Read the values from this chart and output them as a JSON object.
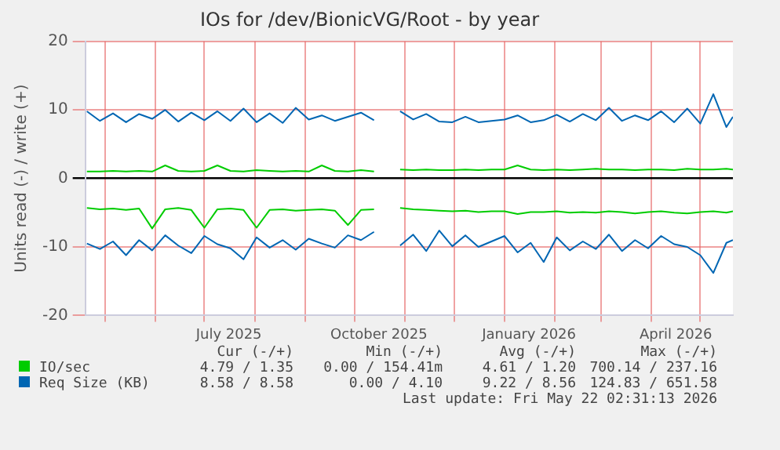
{
  "chart_data": {
    "type": "line",
    "title": "IOs for /dev/BionicVG/Root - by year",
    "ylabel": "Units read (-) / write (+)",
    "x": [
      "2025-04-20",
      "2025-04-28",
      "2025-05-06",
      "2025-05-14",
      "2025-05-22",
      "2025-05-30",
      "2025-06-07",
      "2025-06-15",
      "2025-06-23",
      "2025-07-01",
      "2025-07-09",
      "2025-07-17",
      "2025-07-25",
      "2025-08-02",
      "2025-08-10",
      "2025-08-18",
      "2025-08-26",
      "2025-09-03",
      "2025-09-11",
      "2025-09-19",
      "2025-09-27",
      "2025-10-05",
      "2025-10-13",
      "2025-10-21",
      "2025-10-29",
      "2025-11-06",
      "2025-11-14",
      "2025-11-22",
      "2025-11-30",
      "2025-12-08",
      "2025-12-16",
      "2025-12-24",
      "2026-01-01",
      "2026-01-09",
      "2026-01-17",
      "2026-01-25",
      "2026-02-02",
      "2026-02-10",
      "2026-02-18",
      "2026-02-26",
      "2026-03-06",
      "2026-03-14",
      "2026-03-22",
      "2026-03-30",
      "2026-04-07",
      "2026-04-15",
      "2026-04-23",
      "2026-05-01",
      "2026-05-09",
      "2026-05-17",
      "2026-05-21"
    ],
    "series": [
      {
        "name": "IO/sec",
        "color": "#00cc00",
        "values": [
          -4.3,
          -4.5,
          -4.4,
          -4.6,
          -4.4,
          -7.3,
          -4.5,
          -4.3,
          -4.6,
          -7.2,
          -4.5,
          -4.4,
          -4.6,
          -7.2,
          -4.6,
          -4.5,
          -4.7,
          -4.6,
          -4.5,
          -4.7,
          -6.8,
          -4.6,
          -4.5,
          null,
          -4.3,
          -4.5,
          -4.6,
          -4.7,
          -4.8,
          -4.7,
          -4.9,
          -4.8,
          -4.8,
          -5.2,
          -4.9,
          -4.9,
          -4.8,
          -5.0,
          -4.9,
          -5.0,
          -4.8,
          -4.9,
          -5.1,
          -4.9,
          -4.8,
          -5.0,
          -5.1,
          -4.9,
          -4.8,
          -5.0,
          -4.8
        ]
      },
      {
        "color": "#00cc00",
        "values": [
          1.0,
          1.0,
          1.1,
          1.0,
          1.1,
          1.0,
          1.9,
          1.1,
          1.0,
          1.1,
          1.9,
          1.1,
          1.0,
          1.2,
          1.1,
          1.0,
          1.1,
          1.0,
          1.9,
          1.1,
          1.0,
          1.2,
          1.0,
          null,
          1.3,
          1.2,
          1.3,
          1.2,
          1.2,
          1.3,
          1.2,
          1.3,
          1.3,
          1.9,
          1.3,
          1.2,
          1.3,
          1.2,
          1.3,
          1.4,
          1.3,
          1.3,
          1.2,
          1.3,
          1.3,
          1.2,
          1.4,
          1.3,
          1.3,
          1.4,
          1.3
        ]
      },
      {
        "name": "Req Size (KB)",
        "color": "#0066b3",
        "values": [
          -9.5,
          -10.3,
          -9.2,
          -11.2,
          -9.0,
          -10.5,
          -8.3,
          -9.8,
          -10.9,
          -8.4,
          -9.6,
          -10.2,
          -11.8,
          -8.6,
          -10.1,
          -9.0,
          -10.4,
          -8.8,
          -9.5,
          -10.1,
          -8.3,
          -9.0,
          -7.8,
          null,
          -9.8,
          -8.2,
          -10.6,
          -7.6,
          -9.9,
          -8.3,
          -10.0,
          -9.2,
          -8.4,
          -10.8,
          -9.4,
          -12.2,
          -8.6,
          -10.5,
          -9.2,
          -10.3,
          -8.2,
          -10.6,
          -9.0,
          -10.2,
          -8.4,
          -9.6,
          -10.0,
          -11.2,
          -13.8,
          -9.4,
          -9.0
        ]
      },
      {
        "color": "#0066b3",
        "values": [
          9.8,
          8.4,
          9.5,
          8.2,
          9.4,
          8.7,
          10.0,
          8.3,
          9.6,
          8.5,
          9.8,
          8.4,
          10.2,
          8.2,
          9.5,
          8.1,
          10.3,
          8.6,
          9.2,
          8.4,
          9.0,
          9.6,
          8.5,
          null,
          9.8,
          8.6,
          9.4,
          8.3,
          8.2,
          9.0,
          8.2,
          8.4,
          8.6,
          9.2,
          8.2,
          8.5,
          9.3,
          8.3,
          9.4,
          8.5,
          10.3,
          8.4,
          9.2,
          8.5,
          9.8,
          8.2,
          10.2,
          8.0,
          12.3,
          7.5,
          9.0
        ]
      }
    ],
    "xlim": [
      "2025-04-19",
      "2026-05-21"
    ],
    "xticks": [
      {
        "value": "2025-05-01",
        "label": null
      },
      {
        "value": "2025-06-01",
        "label": null
      },
      {
        "value": "2025-07-01",
        "label": null
      },
      {
        "value": "2025-07-16",
        "label": "July 2025"
      },
      {
        "value": "2025-08-01",
        "label": null
      },
      {
        "value": "2025-09-01",
        "label": null
      },
      {
        "value": "2025-10-01",
        "label": null
      },
      {
        "value": "2025-10-16",
        "label": "October 2025"
      },
      {
        "value": "2025-11-01",
        "label": null
      },
      {
        "value": "2025-12-01",
        "label": null
      },
      {
        "value": "2026-01-01",
        "label": null
      },
      {
        "value": "2026-01-16",
        "label": "January 2026"
      },
      {
        "value": "2026-02-01",
        "label": null
      },
      {
        "value": "2026-03-01",
        "label": null
      },
      {
        "value": "2026-04-01",
        "label": null
      },
      {
        "value": "2026-04-16",
        "label": "April 2026"
      },
      {
        "value": "2026-05-01",
        "label": null
      }
    ],
    "ylim": [
      -20,
      20
    ],
    "yticks": [
      -20,
      -10,
      0,
      10,
      20
    ],
    "grid": true,
    "legend": "bottom",
    "marker": "none",
    "line_style": "solid",
    "annotations": [
      "Cur (-/+)",
      "Min (-/+)",
      "Avg (-/+)",
      "Max (-/+)",
      "4.79 / 1.35",
      "0.00 / 154.41m",
      "4.61 / 1.20",
      "700.14 / 237.16",
      "8.58 / 8.58",
      "0.00 / 4.10",
      "9.22 / 8.56",
      "124.83 / 651.58",
      "Last update: Fri May 22 02:31:13 2026"
    ]
  }
}
